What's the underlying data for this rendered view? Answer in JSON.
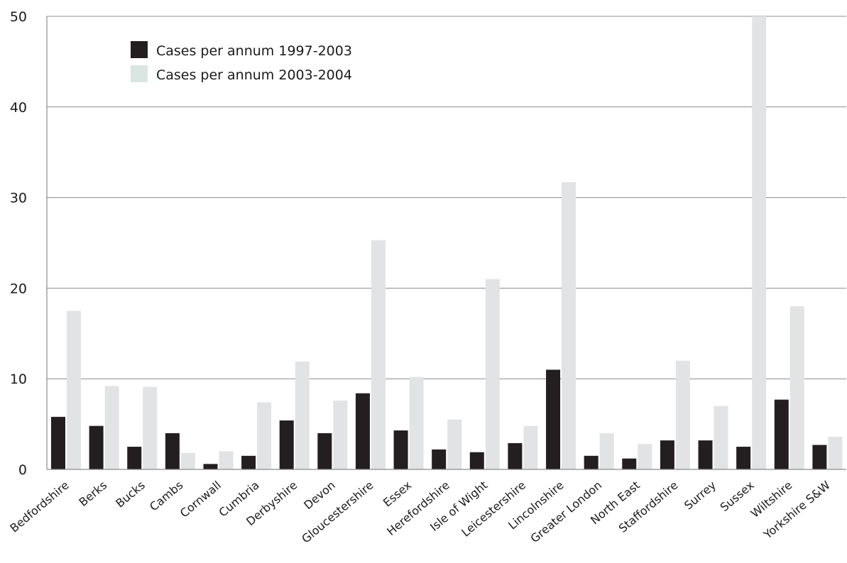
{
  "chart_data": {
    "type": "bar",
    "categories": [
      "Bedfordshire",
      "Berks",
      "Bucks",
      "Cambs",
      "Cornwall",
      "Cumbria",
      "Derbyshire",
      "Devon",
      "Gloucestershire",
      "Essex",
      "Herefordshire",
      "Isle of Wight",
      "Leicestershire",
      "Lincolnshire",
      "Greater London",
      "North East",
      "Staffordshire",
      "Surrey",
      "Sussex",
      "Wiltshire",
      "Yorkshire S&W"
    ],
    "series": [
      {
        "name": "Cases per annum 1997-2003",
        "color": "#231f20",
        "values": [
          5.8,
          4.8,
          2.5,
          4.0,
          0.6,
          1.5,
          5.4,
          4.0,
          8.4,
          4.3,
          2.2,
          1.9,
          2.9,
          11.0,
          1.5,
          1.2,
          3.2,
          3.2,
          2.5,
          7.7,
          2.7
        ]
      },
      {
        "name": "Cases per annum 2003-2004",
        "color": "#e2e3e5",
        "legend_color": "#d9e6e2",
        "values": [
          17.5,
          9.2,
          9.1,
          1.8,
          2.0,
          7.4,
          11.9,
          7.6,
          25.3,
          10.2,
          5.5,
          21.0,
          4.8,
          31.7,
          4.0,
          2.8,
          12.0,
          7.0,
          50.0,
          18.0,
          3.6
        ]
      }
    ],
    "ylim": [
      0,
      50
    ],
    "yticks": [
      "0",
      "10",
      "20",
      "30",
      "40",
      "50"
    ],
    "grid": true,
    "legend_position": "top-left",
    "title": "",
    "xlabel": "",
    "ylabel": ""
  }
}
